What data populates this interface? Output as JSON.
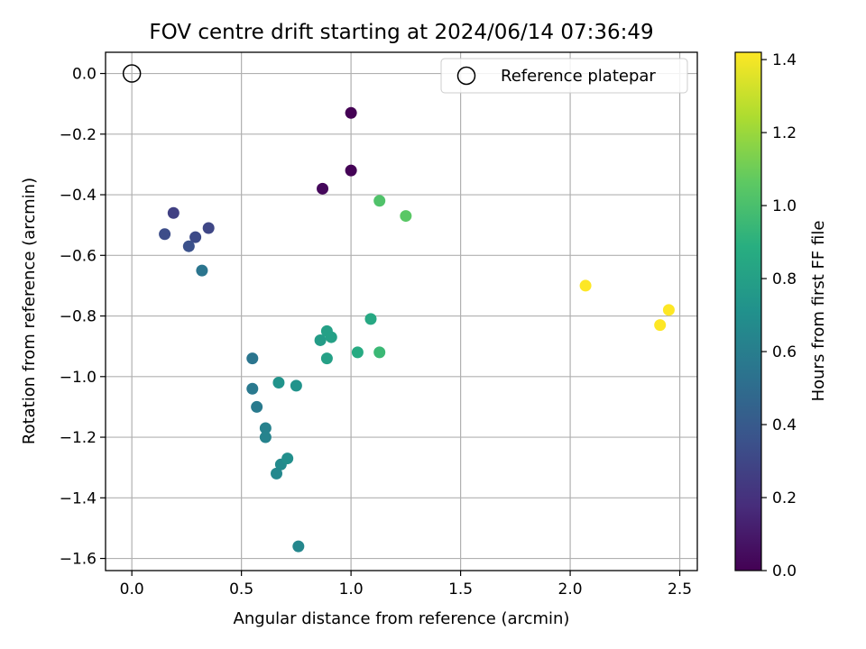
{
  "chart_data": {
    "type": "scatter",
    "title": "FOV centre drift starting at 2024/06/14 07:36:49",
    "xlabel": "Angular distance from reference (arcmin)",
    "ylabel": "Rotation from reference (arcmin)",
    "xlim": [
      -0.12,
      2.58
    ],
    "ylim": [
      -1.64,
      0.07
    ],
    "xticks": [
      0.0,
      0.5,
      1.0,
      1.5,
      2.0,
      2.5
    ],
    "xtick_labels": [
      "0.0",
      "0.5",
      "1.0",
      "1.5",
      "2.0",
      "2.5"
    ],
    "yticks": [
      0.0,
      -0.2,
      -0.4,
      -0.6,
      -0.8,
      -1.0,
      -1.2,
      -1.4,
      -1.6
    ],
    "ytick_labels": [
      "0.0",
      "−0.2",
      "−0.4",
      "−0.6",
      "−0.8",
      "−1.0",
      "−1.2",
      "−1.4",
      "−1.6"
    ],
    "grid": true,
    "legend": {
      "placement": "upper right",
      "entries": [
        "Reference platepar"
      ]
    },
    "reference_point": {
      "x": 0.0,
      "y": 0.0,
      "name": "Reference platepar",
      "marker": "open-circle"
    },
    "colorbar": {
      "label": "Hours from first FF file",
      "colormap": "viridis",
      "range": [
        0.0,
        1.42
      ],
      "ticks": [
        0.0,
        0.2,
        0.4,
        0.6,
        0.8,
        1.0,
        1.2,
        1.4
      ],
      "tick_labels": [
        "0.0",
        "0.2",
        "0.4",
        "0.6",
        "0.8",
        "1.0",
        "1.2",
        "1.4"
      ]
    },
    "points": [
      {
        "x": 1.0,
        "y": -0.13,
        "c": 0.0
      },
      {
        "x": 1.0,
        "y": -0.32,
        "c": 0.01
      },
      {
        "x": 0.87,
        "y": -0.38,
        "c": 0.03
      },
      {
        "x": 0.19,
        "y": -0.46,
        "c": 0.27
      },
      {
        "x": 0.35,
        "y": -0.51,
        "c": 0.3
      },
      {
        "x": 0.15,
        "y": -0.53,
        "c": 0.33
      },
      {
        "x": 0.29,
        "y": -0.54,
        "c": 0.32
      },
      {
        "x": 0.26,
        "y": -0.57,
        "c": 0.35
      },
      {
        "x": 0.32,
        "y": -0.65,
        "c": 0.55
      },
      {
        "x": 0.55,
        "y": -0.94,
        "c": 0.55
      },
      {
        "x": 0.55,
        "y": -1.04,
        "c": 0.57
      },
      {
        "x": 0.57,
        "y": -1.1,
        "c": 0.58
      },
      {
        "x": 0.61,
        "y": -1.17,
        "c": 0.62
      },
      {
        "x": 0.61,
        "y": -1.2,
        "c": 0.63
      },
      {
        "x": 0.67,
        "y": -1.02,
        "c": 0.72
      },
      {
        "x": 0.75,
        "y": -1.03,
        "c": 0.72
      },
      {
        "x": 0.68,
        "y": -1.29,
        "c": 0.67
      },
      {
        "x": 0.71,
        "y": -1.27,
        "c": 0.7
      },
      {
        "x": 0.66,
        "y": -1.32,
        "c": 0.66
      },
      {
        "x": 0.76,
        "y": -1.56,
        "c": 0.65
      },
      {
        "x": 0.86,
        "y": -0.88,
        "c": 0.78
      },
      {
        "x": 0.89,
        "y": -0.85,
        "c": 0.8
      },
      {
        "x": 0.91,
        "y": -0.87,
        "c": 0.8
      },
      {
        "x": 0.89,
        "y": -0.94,
        "c": 0.8
      },
      {
        "x": 1.03,
        "y": -0.92,
        "c": 0.86
      },
      {
        "x": 1.09,
        "y": -0.81,
        "c": 0.85
      },
      {
        "x": 1.13,
        "y": -0.92,
        "c": 0.95
      },
      {
        "x": 1.13,
        "y": -0.42,
        "c": 1.02
      },
      {
        "x": 1.25,
        "y": -0.47,
        "c": 1.05
      },
      {
        "x": 2.07,
        "y": -0.7,
        "c": 1.42
      },
      {
        "x": 2.41,
        "y": -0.83,
        "c": 1.42
      },
      {
        "x": 2.45,
        "y": -0.78,
        "c": 1.42
      }
    ]
  }
}
